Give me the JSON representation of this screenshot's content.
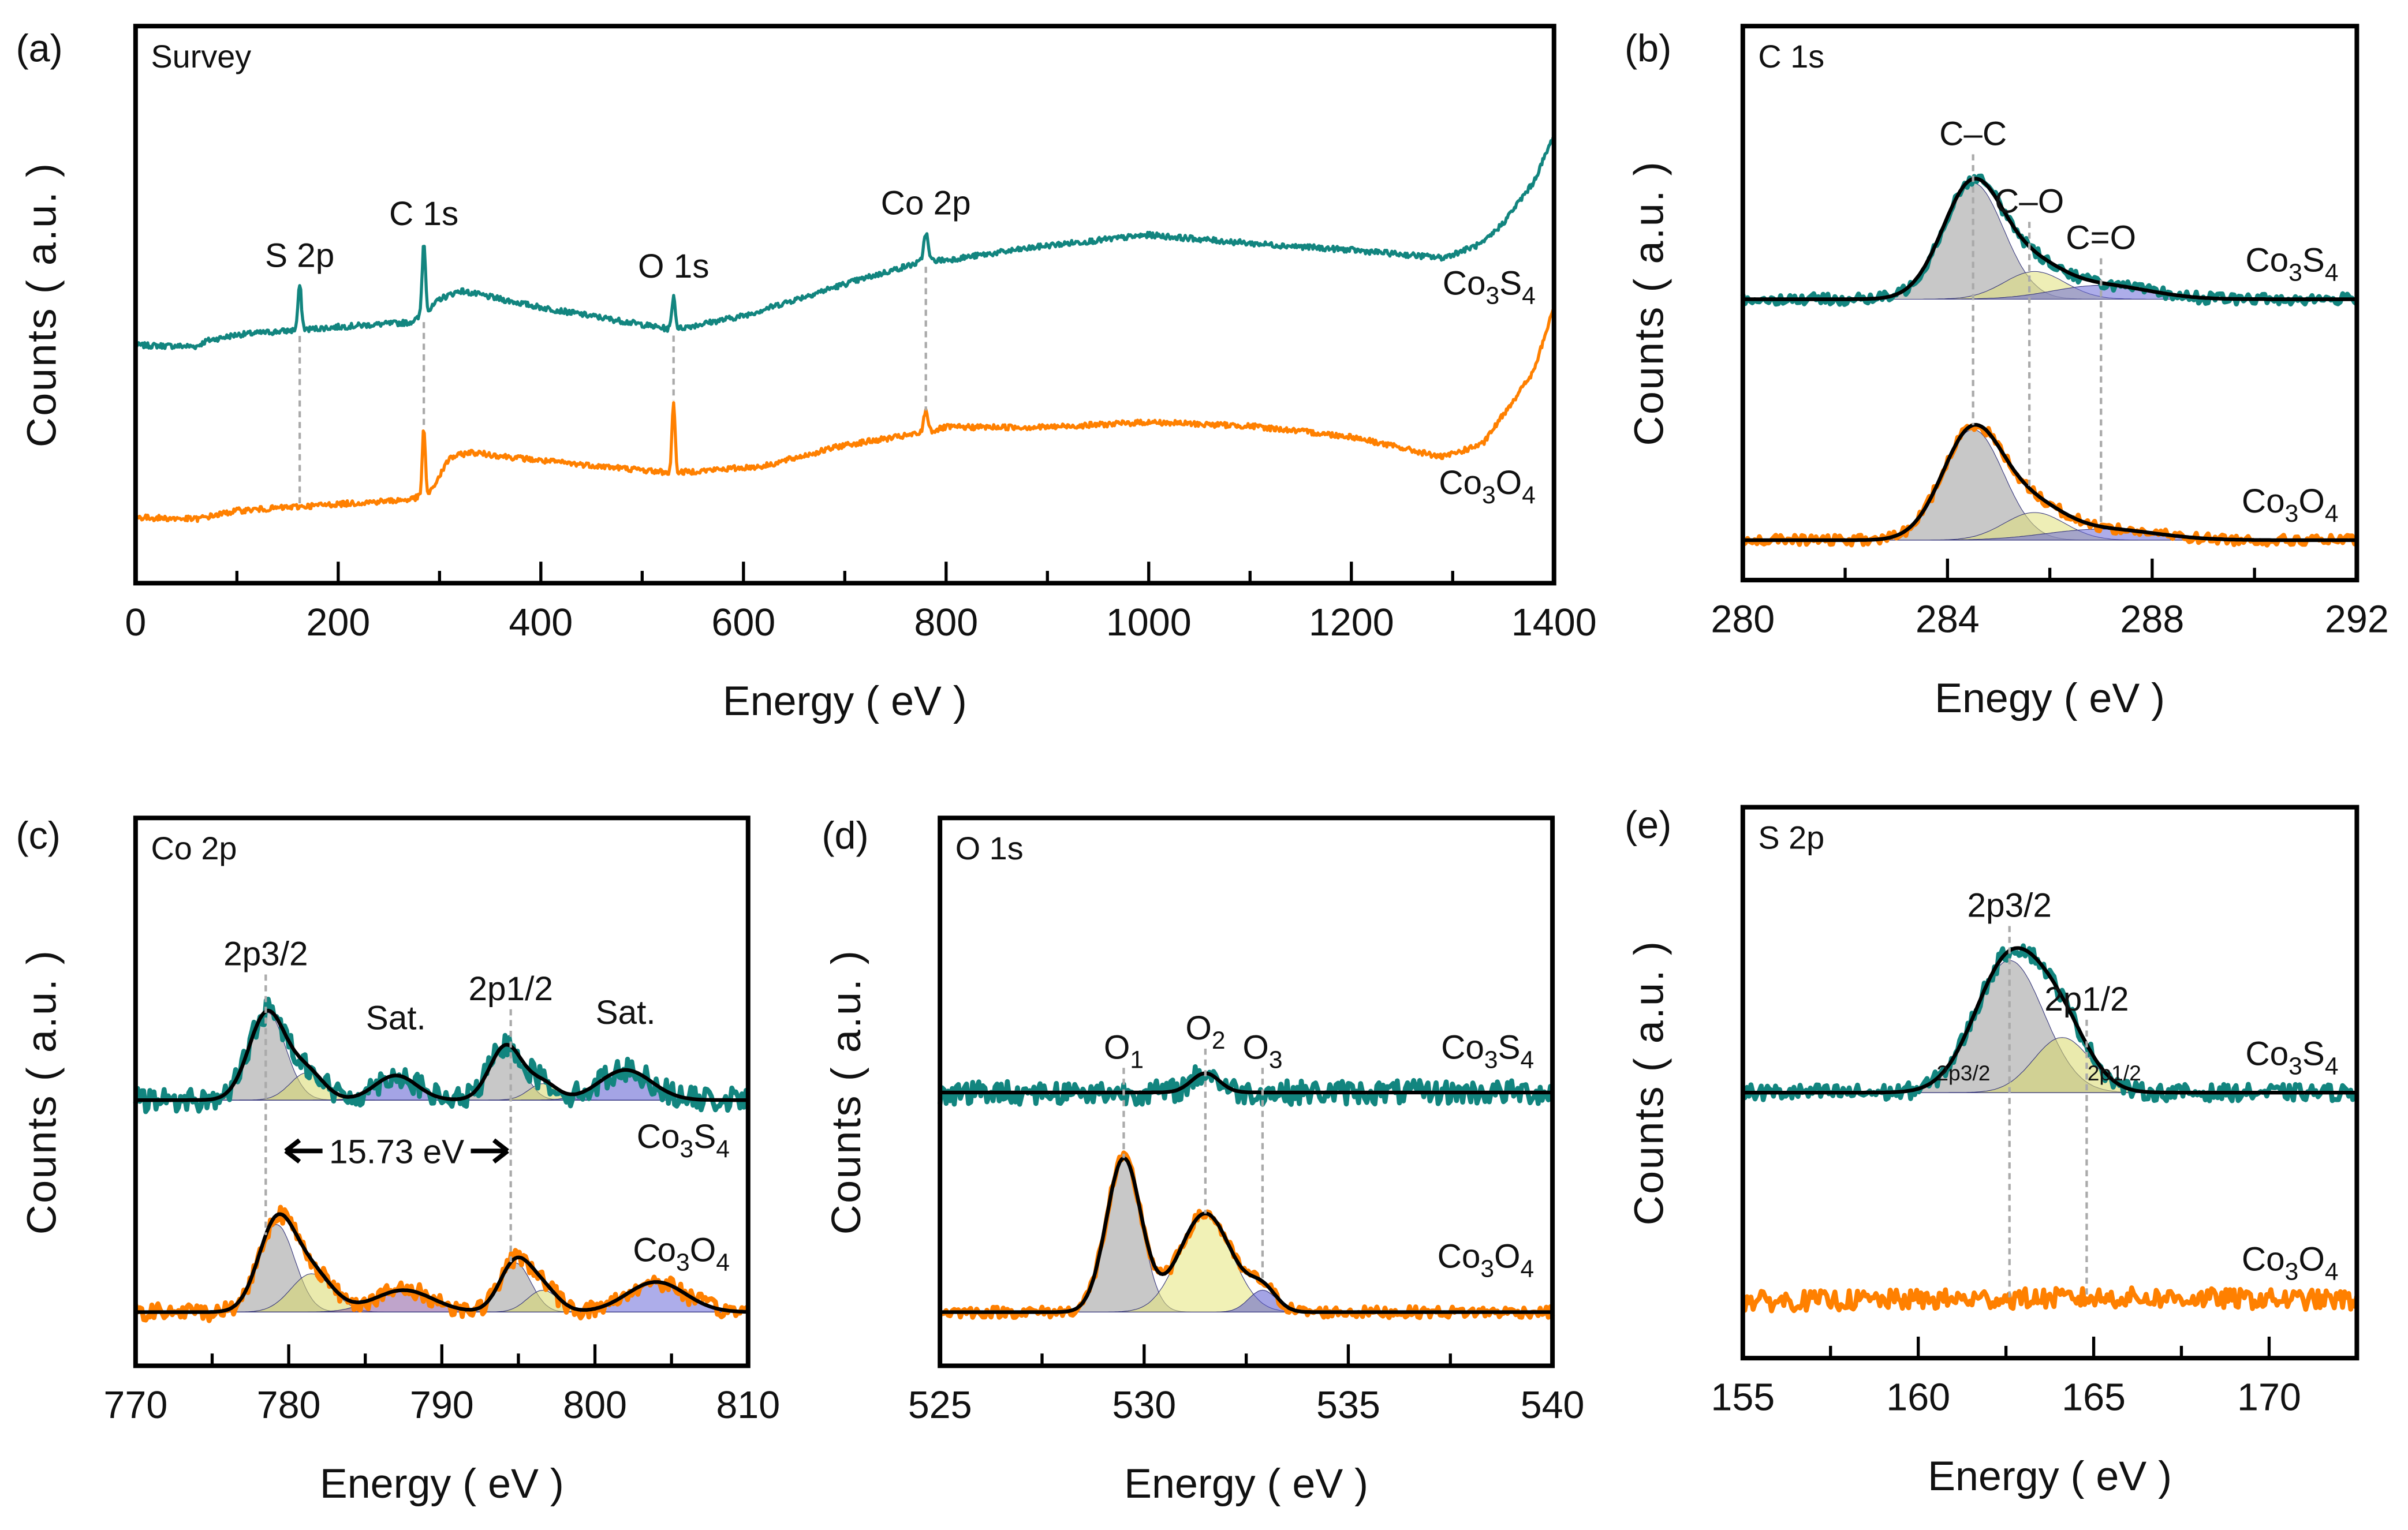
{
  "chart_data": [
    {
      "panel_label": "(a)",
      "type": "line",
      "title": "Survey",
      "xlabel": "Energy ( eV )",
      "ylabel": "Counts ( a.u. )",
      "xlim": [
        0,
        1400
      ],
      "ylim": [
        0,
        100
      ],
      "xticks": [
        0,
        200,
        400,
        600,
        800,
        1000,
        1200,
        1400
      ],
      "xtick_labels": [
        "0",
        "200",
        "400",
        "600",
        "800",
        "1000",
        "1200",
        "1400"
      ],
      "minor_step": 100,
      "grid": false,
      "series": [
        {
          "name": "Co3S4",
          "color": "#12857f",
          "baseline": [
            [
              0,
              42.7
            ],
            [
              60,
              42.5
            ],
            [
              70,
              43.5
            ],
            [
              100,
              44.6
            ],
            [
              200,
              46
            ],
            [
              270,
              46.8
            ],
            [
              285,
              48
            ],
            [
              300,
              51
            ],
            [
              320,
              52.5
            ],
            [
              400,
              49.5
            ],
            [
              530,
              45.5
            ],
            [
              600,
              48
            ],
            [
              700,
              53.7
            ],
            [
              780,
              57.9
            ],
            [
              800,
              58
            ],
            [
              900,
              60.6
            ],
            [
              1000,
              62.5
            ],
            [
              1100,
              61
            ],
            [
              1200,
              59.8
            ],
            [
              1290,
              58.4
            ],
            [
              1330,
              61
            ],
            [
              1350,
              64.7
            ],
            [
              1380,
              72
            ],
            [
              1400,
              80.4
            ]
          ],
          "peaks": [
            {
              "center": 162,
              "fwhm": 4,
              "height": 8
            },
            {
              "center": 284.5,
              "fwhm": 4,
              "height": 13
            },
            {
              "center": 531,
              "fwhm": 4,
              "height": 6
            },
            {
              "center": 780,
              "fwhm": 5,
              "height": 5
            }
          ]
        },
        {
          "name": "Co3O4",
          "color": "#ff8000",
          "baseline": [
            [
              0,
              11.8
            ],
            [
              60,
              11.5
            ],
            [
              100,
              13
            ],
            [
              200,
              14.2
            ],
            [
              270,
              15
            ],
            [
              290,
              16
            ],
            [
              310,
              22.5
            ],
            [
              330,
              23.5
            ],
            [
              400,
              22
            ],
            [
              530,
              19.8
            ],
            [
              620,
              21
            ],
            [
              700,
              24.8
            ],
            [
              780,
              27
            ],
            [
              800,
              28
            ],
            [
              900,
              28
            ],
            [
              1000,
              28.9
            ],
            [
              1100,
              28.2
            ],
            [
              1200,
              26.3
            ],
            [
              1290,
              22.6
            ],
            [
              1330,
              25
            ],
            [
              1350,
              30.3
            ],
            [
              1380,
              38
            ],
            [
              1400,
              49.6
            ]
          ],
          "peaks": [
            {
              "center": 284.5,
              "fwhm": 3.5,
              "height": 12
            },
            {
              "center": 531,
              "fwhm": 3.5,
              "height": 13
            },
            {
              "center": 780,
              "fwhm": 5,
              "height": 4
            }
          ]
        }
      ],
      "annotations": [
        {
          "label": "S 2p",
          "x": 162
        },
        {
          "label": "C 1s",
          "x": 284.5
        },
        {
          "label": "O 1s",
          "x": 531
        },
        {
          "label": "Co 2p",
          "x": 780
        }
      ]
    },
    {
      "panel_label": "(b)",
      "type": "line",
      "title": "C 1s",
      "xlabel": "Enegy ( eV )",
      "ylabel": "Counts ( a.u. )",
      "xlim": [
        280,
        292
      ],
      "ylim": [
        0,
        100
      ],
      "xticks": [
        280,
        284,
        288,
        292
      ],
      "xtick_labels": [
        "280",
        "284",
        "288",
        "292"
      ],
      "minor_step": 2,
      "grid": false,
      "series": [
        {
          "name": "Co3S4",
          "color": "#12857f",
          "baseline": [
            [
              280,
              50.7
            ],
            [
              292,
              50.7
            ]
          ],
          "peaks": [
            {
              "label": "C–C",
              "center": 284.5,
              "fwhm": 1.4,
              "height": 21,
              "fill": "#9a9a9a"
            },
            {
              "label": "C–O",
              "center": 285.7,
              "fwhm": 1.4,
              "height": 5,
              "fill": "#e0e07a"
            },
            {
              "label": "C=O",
              "center": 287.0,
              "fwhm": 2.2,
              "height": 2.5,
              "fill": "#6a6ad8"
            }
          ]
        },
        {
          "name": "Co3O4",
          "color": "#ff8000",
          "baseline": [
            [
              280,
              7.2
            ],
            [
              292,
              7.2
            ]
          ],
          "peaks": [
            {
              "label": "C–C",
              "center": 284.5,
              "fwhm": 1.4,
              "height": 20,
              "fill": "#9a9a9a"
            },
            {
              "label": "C–O",
              "center": 285.7,
              "fwhm": 1.4,
              "height": 5,
              "fill": "#e0e07a"
            },
            {
              "label": "C=O",
              "center": 287.0,
              "fwhm": 2.5,
              "height": 2,
              "fill": "#6a6ad8"
            }
          ]
        }
      ],
      "annotations": [
        {
          "label": "C–C",
          "x": 284.5
        },
        {
          "label": "C–O",
          "x": 285.6
        },
        {
          "label": "C=O",
          "x": 287.0
        }
      ]
    },
    {
      "panel_label": "(c)",
      "type": "line",
      "title": "Co 2p",
      "xlabel": "Energy ( eV )",
      "ylabel": "Counts ( a.u. )",
      "xlim": [
        770,
        810
      ],
      "ylim": [
        0,
        100
      ],
      "xticks": [
        770,
        780,
        790,
        800,
        810
      ],
      "xtick_labels": [
        "770",
        "780",
        "790",
        "800",
        "810"
      ],
      "minor_step": 5,
      "grid": false,
      "series": [
        {
          "name": "Co3S4",
          "color": "#12857f",
          "baseline": [
            [
              770,
              48.5
            ],
            [
              810,
              48.5
            ]
          ],
          "peaks": [
            {
              "center": 778.6,
              "fwhm": 2.8,
              "height": 16,
              "fill": "#9a9a9a"
            },
            {
              "center": 781.2,
              "fwhm": 2.6,
              "height": 5,
              "fill": "#d8d86a"
            },
            {
              "center": 787,
              "fwhm": 3.2,
              "height": 4.5,
              "fill": "#5a5ad0"
            },
            {
              "center": 794.2,
              "fwhm": 2.5,
              "height": 10,
              "fill": "#9a9a9a"
            },
            {
              "center": 796.6,
              "fwhm": 2.2,
              "height": 3,
              "fill": "#d8d86a"
            },
            {
              "center": 802,
              "fwhm": 4,
              "height": 5.5,
              "fill": "#5a5ad0"
            }
          ]
        },
        {
          "name": "Co3O4",
          "color": "#ff8000",
          "baseline": [
            [
              770,
              9.8
            ],
            [
              810,
              9.8
            ]
          ],
          "peaks": [
            {
              "center": 779.2,
              "fwhm": 2.8,
              "height": 16,
              "fill": "#9a9a9a"
            },
            {
              "center": 781.5,
              "fwhm": 3.2,
              "height": 7,
              "fill": "#d8d86a"
            },
            {
              "center": 787.5,
              "fwhm": 4.5,
              "height": 4,
              "fill": "#8a5aa0"
            },
            {
              "center": 794.8,
              "fwhm": 2.4,
              "height": 9,
              "fill": "#9a9a9a"
            },
            {
              "center": 796.6,
              "fwhm": 2.4,
              "height": 4,
              "fill": "#d8d86a"
            },
            {
              "center": 804,
              "fwhm": 4.5,
              "height": 5.5,
              "fill": "#6a6ad8"
            }
          ]
        }
      ],
      "annotations": [
        {
          "label": "2p3/2",
          "x": 778.5
        },
        {
          "label": "Sat.",
          "x": 787
        },
        {
          "label": "2p1/2",
          "x": 794.5
        },
        {
          "label": "Sat.",
          "x": 802
        }
      ],
      "splitting": {
        "label": "15.73 eV",
        "from": 779.2,
        "to": 794.9
      }
    },
    {
      "panel_label": "(d)",
      "type": "line",
      "title": "O 1s",
      "xlabel": "Energy ( eV )",
      "ylabel": "Counts ( a.u. )",
      "xlim": [
        525,
        540
      ],
      "ylim": [
        0,
        100
      ],
      "xticks": [
        525,
        530,
        535,
        540
      ],
      "xtick_labels": [
        "525",
        "530",
        "535",
        "540"
      ],
      "minor_step": 2.5,
      "grid": false,
      "series": [
        {
          "name": "Co3S4",
          "color": "#12857f",
          "baseline": [
            [
              525,
              49.9
            ],
            [
              540,
              49.9
            ]
          ],
          "peaks": [
            {
              "center": 531.5,
              "fwhm": 0.8,
              "height": 3.5
            }
          ]
        },
        {
          "name": "Co3O4",
          "color": "#ff8000",
          "baseline": [
            [
              525,
              9.8
            ],
            [
              540,
              9.8
            ]
          ],
          "peaks": [
            {
              "label": "O1",
              "center": 529.5,
              "fwhm": 1.0,
              "height": 28,
              "fill": "#9a9a9a"
            },
            {
              "label": "O2",
              "center": 531.5,
              "fwhm": 1.5,
              "height": 18,
              "fill": "#e6e67a"
            },
            {
              "label": "O3",
              "center": 532.9,
              "fwhm": 0.8,
              "height": 4,
              "fill": "#5a5ad0"
            }
          ]
        }
      ],
      "annotations": [
        {
          "label": "O1",
          "x": 529.5
        },
        {
          "label": "O2",
          "x": 531.5
        },
        {
          "label": "O3",
          "x": 532.9
        }
      ]
    },
    {
      "panel_label": "(e)",
      "type": "line",
      "title": "S 2p",
      "xlabel": "Energy ( eV )",
      "ylabel": "Counts ( a.u. )",
      "xlim": [
        155,
        172.5
      ],
      "ylim": [
        0,
        100
      ],
      "xticks": [
        155,
        160,
        165,
        170
      ],
      "xtick_labels": [
        "155",
        "160",
        "165",
        "170"
      ],
      "minor_step": 2.5,
      "grid": false,
      "series": [
        {
          "name": "Co3S4",
          "color": "#12857f",
          "baseline": [
            [
              155,
              48.2
            ],
            [
              172.5,
              48.2
            ]
          ],
          "peaks": [
            {
              "label": "2p3/2",
              "center": 162.6,
              "fwhm": 2.3,
              "height": 24,
              "fill": "#9a9a9a"
            },
            {
              "label": "2p1/2",
              "center": 164.1,
              "fwhm": 1.9,
              "height": 10,
              "fill": "#d8d86a"
            }
          ]
        },
        {
          "name": "Co3O4",
          "color": "#ff8000",
          "baseline": [
            [
              155,
              10.3
            ],
            [
              166,
              11
            ],
            [
              172.5,
              10.5
            ]
          ],
          "peaks": []
        }
      ],
      "annotations": [
        {
          "label": "2p3/2",
          "x": 162.6
        },
        {
          "label": "2p1/2",
          "x": 164.8
        }
      ]
    }
  ]
}
